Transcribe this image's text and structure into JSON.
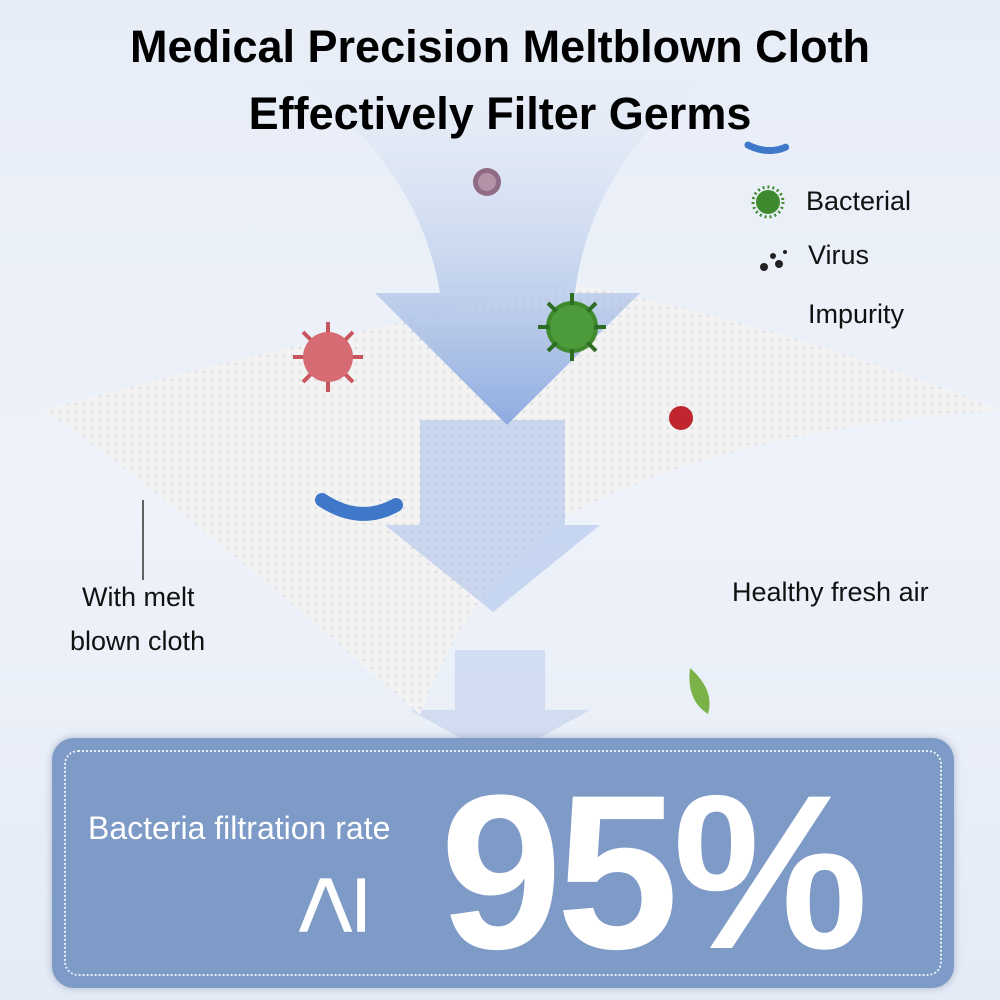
{
  "title": {
    "line1": "Medical Precision Meltblown Cloth",
    "line2": "Effectively Filter Germs"
  },
  "legend": [
    {
      "icon": "bacteria-icon",
      "label": "Bacterial"
    },
    {
      "icon": "virus-dots-icon",
      "label": "Virus"
    },
    {
      "icon": "",
      "label": "Impurity"
    }
  ],
  "labels": {
    "cloth_line1": "With melt",
    "cloth_line2": "blown cloth",
    "fresh_air": "Healthy fresh air"
  },
  "stat": {
    "label": "Bacteria filtration rate",
    "symbol": "≥",
    "value": "95%"
  },
  "colors": {
    "arrow": "#9fb7e2",
    "panel": "#7e9ac6",
    "bacteria": "#3f8a2f",
    "virus_red": "#c8545e"
  }
}
